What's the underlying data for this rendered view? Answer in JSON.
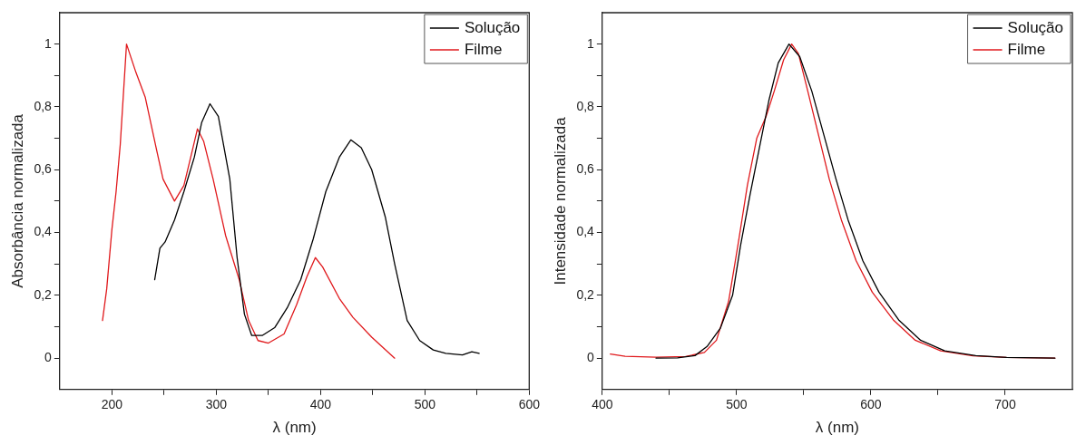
{
  "chart_data": [
    {
      "type": "line",
      "xlabel": "λ (nm)",
      "ylabel": "Absorbância normalizada",
      "xlim": [
        150,
        600
      ],
      "ylim": [
        -0.1,
        1.1
      ],
      "xticks": [
        200,
        {
          "value": 250,
          "label": null
        },
        300,
        {
          "value": 350,
          "label": null
        },
        400,
        {
          "value": 450,
          "label": null
        },
        500,
        {
          "value": 550,
          "label": null
        },
        600
      ],
      "yticks": [
        {
          "value": 0,
          "label": "0"
        },
        {
          "value": 0.1,
          "label": null
        },
        {
          "value": 0.2,
          "label": "0,2"
        },
        {
          "value": 0.3,
          "label": null
        },
        {
          "value": 0.4,
          "label": "0,4"
        },
        {
          "value": 0.5,
          "label": null
        },
        {
          "value": 0.6,
          "label": "0,6"
        },
        {
          "value": 0.7,
          "label": null
        },
        {
          "value": 0.8,
          "label": "0,8"
        },
        {
          "value": 0.9,
          "label": null
        },
        {
          "value": 1,
          "label": "1"
        }
      ],
      "grid": false,
      "legend": "top right",
      "marker": "none",
      "line_style": "solid",
      "series": [
        {
          "name": "Solução",
          "color": "#000000",
          "x": [
            241,
            246,
            251,
            260,
            269,
            279,
            286,
            294,
            302,
            313,
            320,
            327,
            334,
            344,
            356,
            368,
            381,
            393,
            405,
            418,
            429,
            439,
            449,
            462,
            471,
            483,
            495,
            508,
            520,
            536,
            545,
            552
          ],
          "values": [
            0.25,
            0.35,
            0.37,
            0.44,
            0.53,
            0.64,
            0.75,
            0.81,
            0.77,
            0.57,
            0.32,
            0.14,
            0.072,
            0.072,
            0.097,
            0.16,
            0.25,
            0.38,
            0.53,
            0.64,
            0.695,
            0.67,
            0.6,
            0.45,
            0.3,
            0.12,
            0.056,
            0.026,
            0.015,
            0.01,
            0.02,
            0.015
          ]
        },
        {
          "name": "Filme",
          "color": "#e0191c",
          "x": [
            191,
            195,
            200,
            204,
            208,
            214,
            223,
            232,
            243,
            249,
            260,
            269,
            277,
            282,
            288,
            297,
            309,
            322,
            331,
            340,
            350,
            365,
            377,
            387,
            395,
            402,
            418,
            431,
            449,
            471
          ],
          "values": [
            0.12,
            0.22,
            0.41,
            0.53,
            0.68,
            1.0,
            0.91,
            0.83,
            0.66,
            0.57,
            0.5,
            0.55,
            0.66,
            0.73,
            0.69,
            0.57,
            0.39,
            0.25,
            0.12,
            0.056,
            0.048,
            0.077,
            0.17,
            0.26,
            0.32,
            0.29,
            0.19,
            0.13,
            0.067,
            0.0
          ]
        }
      ]
    },
    {
      "type": "line",
      "xlabel": "λ (nm)",
      "ylabel": "Intensidade normalizada",
      "xlim": [
        400,
        750
      ],
      "ylim": [
        -0.1,
        1.1
      ],
      "xticks": [
        400,
        {
          "value": 450,
          "label": null
        },
        500,
        {
          "value": 550,
          "label": null
        },
        600,
        {
          "value": 650,
          "label": null
        },
        700
      ],
      "yticks": [
        {
          "value": 0,
          "label": "0"
        },
        {
          "value": 0.1,
          "label": null
        },
        {
          "value": 0.2,
          "label": "0,2"
        },
        {
          "value": 0.3,
          "label": null
        },
        {
          "value": 0.4,
          "label": "0,4"
        },
        {
          "value": 0.5,
          "label": null
        },
        {
          "value": 0.6,
          "label": "0,6"
        },
        {
          "value": 0.7,
          "label": null
        },
        {
          "value": 0.8,
          "label": "0,8"
        },
        {
          "value": 0.9,
          "label": null
        },
        {
          "value": 1,
          "label": "1"
        }
      ],
      "grid": false,
      "legend": "top right",
      "marker": "none",
      "line_style": "solid",
      "series": [
        {
          "name": "Solução",
          "color": "#000000",
          "x": [
            440,
            456,
            469,
            478,
            488,
            497,
            503,
            510,
            517,
            524,
            531,
            539,
            547,
            556,
            565,
            574,
            583,
            594,
            606,
            621,
            637,
            655,
            678,
            701,
            737
          ],
          "values": [
            0,
            0.001,
            0.008,
            0.037,
            0.096,
            0.2,
            0.36,
            0.52,
            0.67,
            0.82,
            0.94,
            1.0,
            0.96,
            0.85,
            0.71,
            0.57,
            0.44,
            0.31,
            0.21,
            0.12,
            0.057,
            0.023,
            0.008,
            0.002,
            0
          ]
        },
        {
          "name": "Filme",
          "color": "#e0191c",
          "x": [
            406,
            417,
            440,
            462,
            476,
            485,
            494,
            501,
            508,
            515,
            522,
            528,
            535,
            541,
            546,
            553,
            561,
            569,
            578,
            589,
            601,
            617,
            633,
            652,
            676,
            701,
            737
          ],
          "values": [
            0.013,
            0.006,
            0.003,
            0.005,
            0.018,
            0.057,
            0.18,
            0.36,
            0.55,
            0.7,
            0.77,
            0.85,
            0.95,
            1.0,
            0.97,
            0.85,
            0.71,
            0.57,
            0.44,
            0.31,
            0.21,
            0.12,
            0.057,
            0.023,
            0.007,
            0.002,
            0
          ]
        }
      ]
    }
  ]
}
